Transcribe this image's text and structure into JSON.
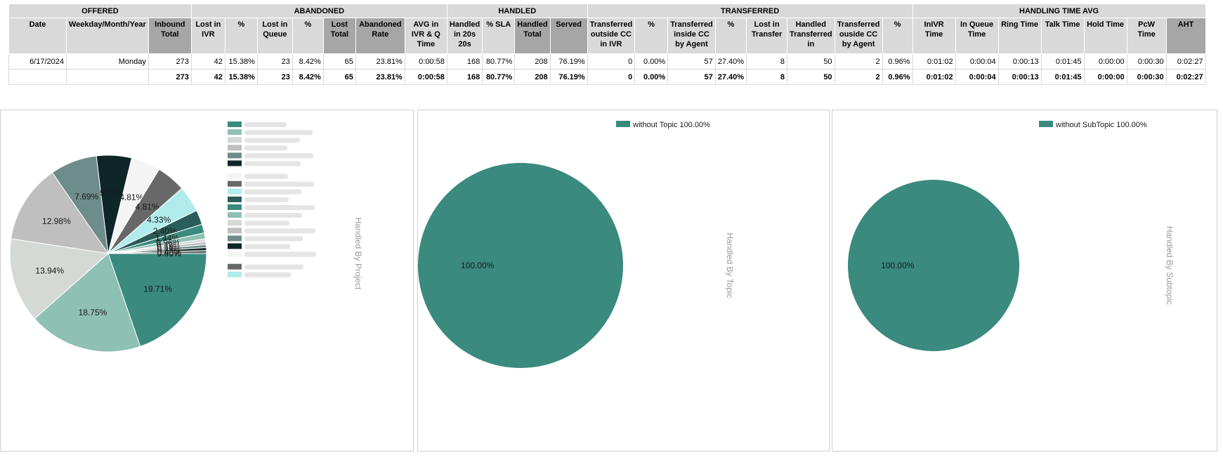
{
  "table": {
    "groups": [
      {
        "label": "OFFERED",
        "span": 3
      },
      {
        "label": "ABANDONED",
        "span": 7
      },
      {
        "label": "HANDLED",
        "span": 4
      },
      {
        "label": "TRANSFERRED",
        "span": 8
      },
      {
        "label": "HANDLING TIME AVG",
        "span": 7
      }
    ],
    "columns": [
      {
        "label": "Date",
        "dark": false
      },
      {
        "label": "Weekday/Month/Year",
        "dark": false
      },
      {
        "label": "Inbound Total",
        "dark": true
      },
      {
        "label": "Lost in IVR",
        "dark": false
      },
      {
        "label": "%",
        "dark": false
      },
      {
        "label": "Lost in Queue",
        "dark": false
      },
      {
        "label": "%",
        "dark": false
      },
      {
        "label": "Lost Total",
        "dark": true
      },
      {
        "label": "Abandoned Rate",
        "dark": true
      },
      {
        "label": "AVG in IVR & Q Time",
        "dark": false
      },
      {
        "label": "Handled in 20s 20s",
        "dark": false
      },
      {
        "label": "% SLA",
        "dark": false
      },
      {
        "label": "Handled Total",
        "dark": true
      },
      {
        "label": "Served",
        "dark": true
      },
      {
        "label": "Transferred outside CC in IVR",
        "dark": false
      },
      {
        "label": "%",
        "dark": false
      },
      {
        "label": "Transferred inside CC by Agent",
        "dark": false
      },
      {
        "label": "%",
        "dark": false
      },
      {
        "label": "Lost in Transfer",
        "dark": false
      },
      {
        "label": "Handled Transferred in",
        "dark": false
      },
      {
        "label": "Transferred ouside CC by Agent",
        "dark": false
      },
      {
        "label": "%",
        "dark": false
      },
      {
        "label": "InIVR Time",
        "dark": false
      },
      {
        "label": "In Queue Time",
        "dark": false
      },
      {
        "label": "Ring Time",
        "dark": false
      },
      {
        "label": "Talk Time",
        "dark": false
      },
      {
        "label": "Hold Time",
        "dark": false
      },
      {
        "label": "PcW Time",
        "dark": false
      },
      {
        "label": "AHT",
        "dark": true
      }
    ],
    "rows": [
      [
        "6/17/2024",
        "Monday",
        "273",
        "42",
        "15.38%",
        "23",
        "8.42%",
        "65",
        "23.81%",
        "0:00:58",
        "168",
        "80.77%",
        "208",
        "76.19%",
        "0",
        "0.00%",
        "57",
        "27.40%",
        "8",
        "50",
        "2",
        "0.96%",
        "0:01:02",
        "0:00:04",
        "0:00:13",
        "0:01:45",
        "0:00:00",
        "0:00:30",
        "0:02:27"
      ],
      [
        "",
        "",
        "273",
        "42",
        "15.38%",
        "23",
        "8.42%",
        "65",
        "23.81%",
        "0:00:58",
        "168",
        "80.77%",
        "208",
        "76.19%",
        "0",
        "0.00%",
        "57",
        "27.40%",
        "8",
        "50",
        "2",
        "0.96%",
        "0:01:02",
        "0:00:04",
        "0:00:13",
        "0:01:45",
        "0:00:00",
        "0:00:30",
        "0:02:27"
      ]
    ]
  },
  "chart_data": [
    {
      "type": "pie",
      "title": "Handled By Project",
      "slices": [
        {
          "label": "",
          "value": 19.71,
          "display": "19.71%",
          "color": "#3a8a7e"
        },
        {
          "label": "",
          "value": 18.75,
          "display": "18.75%",
          "color": "#8fc0b4"
        },
        {
          "label": "",
          "value": 13.94,
          "display": "13.94%",
          "color": "#d5d9d6"
        },
        {
          "label": "",
          "value": 12.98,
          "display": "12.98%",
          "color": "#bfbfbf"
        },
        {
          "label": "",
          "value": 7.69,
          "display": "7.69%",
          "color": "#6e8c8a"
        },
        {
          "label": "",
          "value": 5.77,
          "display": "5.77%",
          "color": "#0e2628"
        },
        {
          "label": "",
          "value": 4.81,
          "display": "4.81%",
          "color": "#f4f4f4"
        },
        {
          "label": "",
          "value": 4.81,
          "display": "4.81%",
          "color": "#686868"
        },
        {
          "label": "",
          "value": 4.33,
          "display": "4.33%",
          "color": "#b0ecec"
        },
        {
          "label": "",
          "value": 2.4,
          "display": "2.40%",
          "color": "#2a5c59"
        },
        {
          "label": "",
          "value": 1.44,
          "display": "1.44%",
          "color": "#3a8a7e"
        },
        {
          "label": "",
          "value": 0.96,
          "display": "0.96%",
          "color": "#8fc0b4"
        },
        {
          "label": "",
          "value": 0.48,
          "display": "0.48%",
          "color": "#d5d9d6"
        },
        {
          "label": "",
          "value": 0.48,
          "display": "0.48%",
          "color": "#bfbfbf"
        },
        {
          "label": "",
          "value": 0.48,
          "display": "0.48%",
          "color": "#6e8c8a"
        },
        {
          "label": "",
          "value": 0.48,
          "display": "0.48%",
          "color": "#0e2628"
        },
        {
          "label": "",
          "value": 0.48,
          "display": "0.48%",
          "color": "#686868"
        },
        {
          "label": "",
          "value": 0.0,
          "display": "0.00%",
          "color": "#b0ecec"
        }
      ],
      "legend_swatches": [
        "#3a8a7e",
        "#8fc0b4",
        "#d5d9d6",
        "#bfbfbf",
        "#6e8c8a",
        "#0e2628",
        "#f4f4f4",
        "#686868",
        "#b0ecec",
        "#2a5c59",
        "#3a8a7e",
        "#8fc0b4",
        "#d5d9d6",
        "#bfbfbf",
        "#6e8c8a",
        "#0e2628",
        "#f4f4f4",
        "#686868",
        "#b0ecec"
      ]
    },
    {
      "type": "pie",
      "title": "Handled By Topic",
      "slices": [
        {
          "label": "without Topic 100.00%",
          "value": 100.0,
          "display": "100.00%",
          "color": "#3a8a7e"
        }
      ]
    },
    {
      "type": "pie",
      "title": "Handled By Subtopic",
      "slices": [
        {
          "label": "without SubTopic 100.00%",
          "value": 100.0,
          "display": "100.00%",
          "color": "#3a8a7e"
        }
      ]
    }
  ]
}
